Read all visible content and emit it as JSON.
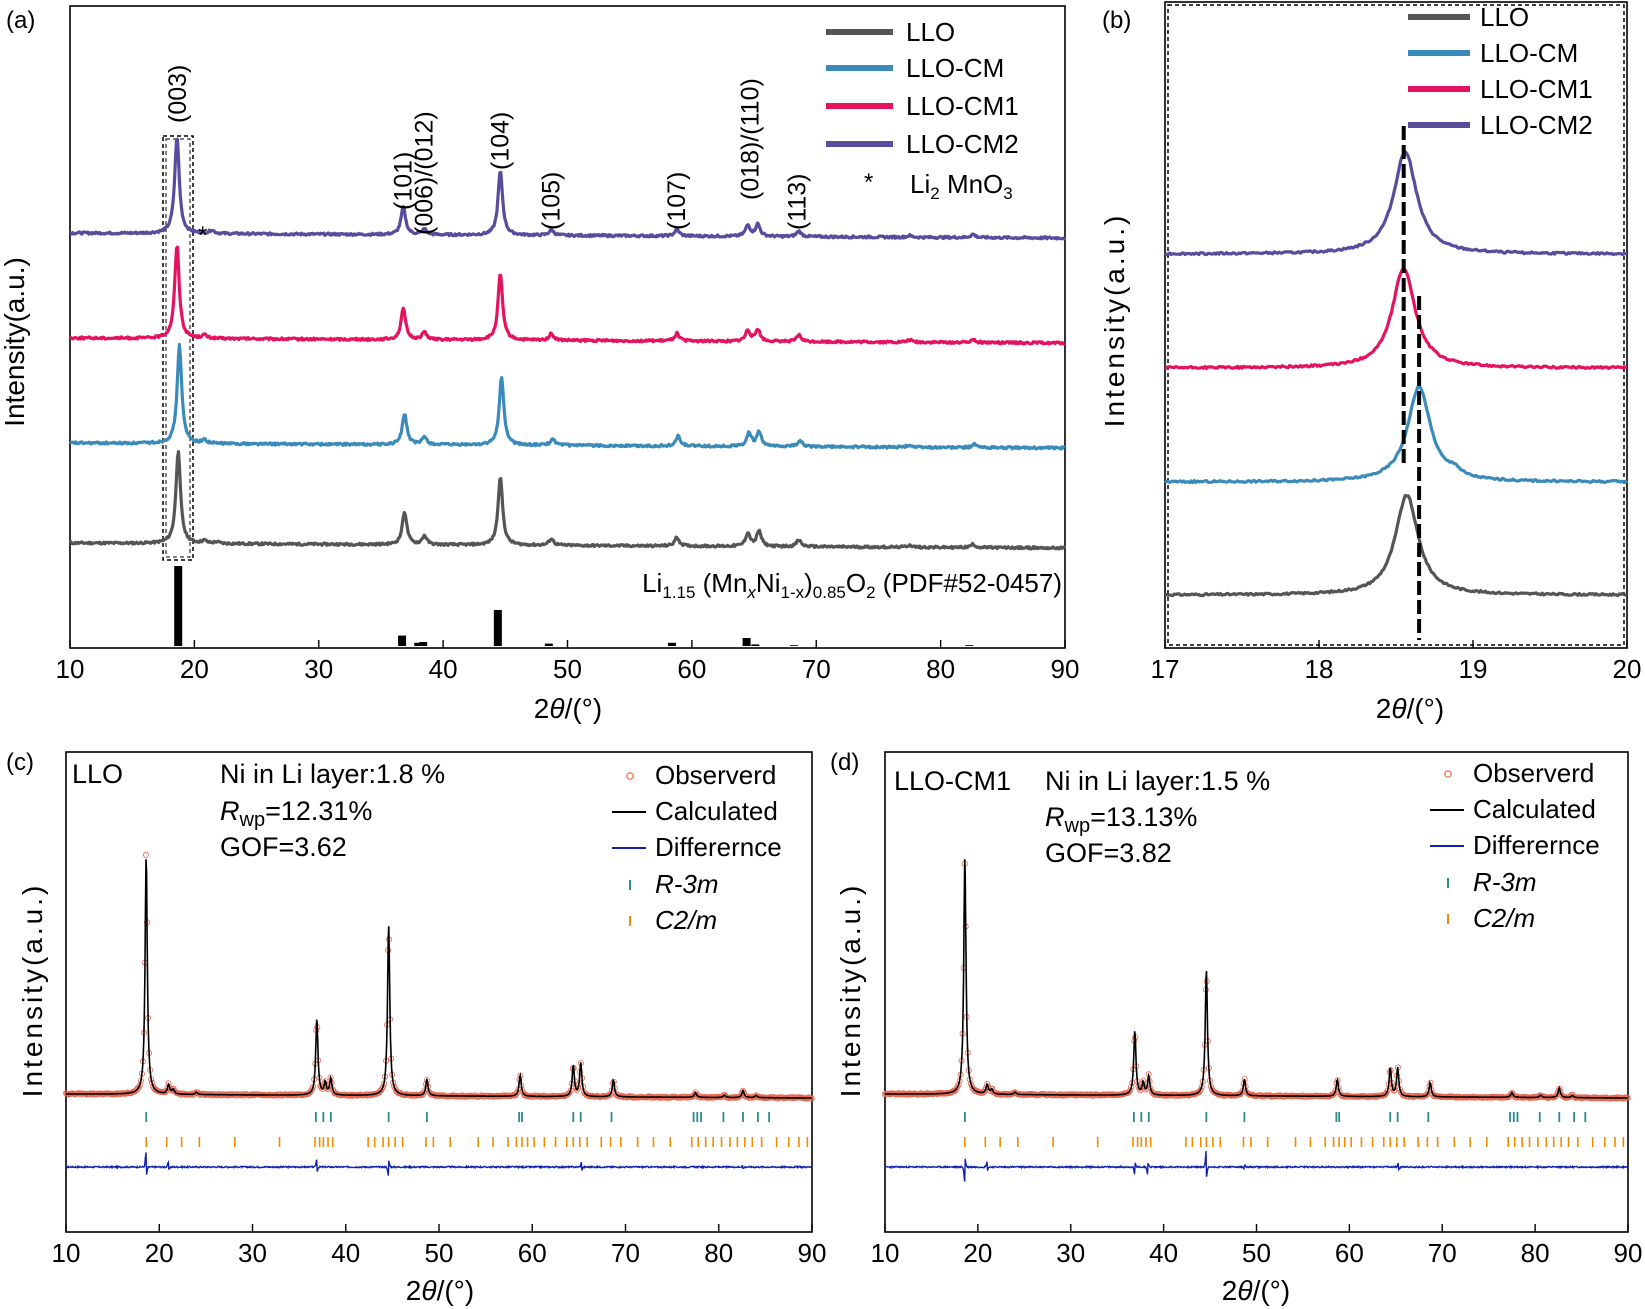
{
  "panel_labels": [
    "(a)",
    "(b)",
    "(c)",
    "(d)"
  ],
  "colors": {
    "LLO": "#555555",
    "LLO-CM": "#3b8bba",
    "LLO-CM1": "#e5135f",
    "LLO-CM2": "#5b4b9c",
    "observed": "#e8664f",
    "calculated": "#000000",
    "difference": "#1020b0",
    "r3m": "#2a8c8c",
    "c2m": "#f08c00"
  },
  "panel_a": {
    "ylabel": "Intensity(a.u.)",
    "xlabel": "2θ/(°)",
    "legend": [
      "LLO",
      "LLO-CM",
      "LLO-CM1",
      "LLO-CM2"
    ],
    "star_label": "*",
    "li2mno3": {
      "main": "Li",
      "sub": "2",
      "mid": " MnO",
      "sub2": "3"
    },
    "pdf": {
      "p1": "Li",
      "s1": "1.15",
      "p2": " (Mn",
      "s2": "x",
      "p3": "Ni",
      "s3": "1-x",
      "p4": ")",
      "s4": "0.85",
      "p5": "O",
      "s5": "2",
      "p6": " (PDF#52-0457)"
    },
    "hkl": [
      {
        "label": "(003)",
        "x": 18.7
      },
      {
        "label": "(101)",
        "x": 36.8
      },
      {
        "label": "(006)/(012)",
        "x": 38.5
      },
      {
        "label": "(104)",
        "x": 44.6
      },
      {
        "label": "(105)",
        "x": 48.7
      },
      {
        "label": "(107)",
        "x": 58.8
      },
      {
        "label": "(018)/(110)",
        "x": 64.7
      },
      {
        "label": "(113)",
        "x": 68.5
      }
    ]
  },
  "panel_b": {
    "ylabel": "Intensity(a.u.)",
    "xlabel": "2θ/(°)",
    "legend": [
      "LLO",
      "LLO-CM",
      "LLO-CM1",
      "LLO-CM2"
    ]
  },
  "panel_c": {
    "sample": "LLO",
    "ni_text": "Ni in Li layer:1.8 %",
    "rwp_prefix": "R",
    "rwp_sub": "wp",
    "rwp_value": "=12.31%",
    "gof": "GOF=3.62",
    "ylabel": "Intensity(a.u.)",
    "xlabel": "2θ/(°)",
    "legend": {
      "observed": "Observerd",
      "calculated": "Calculated",
      "difference": "Differernce",
      "r3m": "R-3m",
      "c2m": "C2/m"
    }
  },
  "panel_d": {
    "sample": "LLO-CM1",
    "ni_text": "Ni in Li layer:1.5 %",
    "rwp_prefix": "R",
    "rwp_sub": "wp",
    "rwp_value": "=13.13%",
    "gof": "GOF=3.82",
    "ylabel": "Intensity(a.u.)",
    "xlabel": "2θ/(°)",
    "legend": {
      "observed": "Observerd",
      "calculated": "Calculated",
      "difference": "Differernce",
      "r3m": "R-3m",
      "c2m": "C2/m"
    }
  },
  "chart_data": [
    {
      "id": "a",
      "type": "line",
      "title": "",
      "xlabel": "2θ/(°)",
      "ylabel": "Intensity(a.u.)",
      "xlim": [
        10,
        90
      ],
      "xticks": [
        10,
        20,
        30,
        40,
        50,
        60,
        70,
        80,
        90
      ],
      "baseline_offsets": [
        0,
        1,
        2,
        3
      ],
      "series": [
        {
          "name": "LLO",
          "offset": 0,
          "peaks": [
            [
              18.7,
              0.85
            ],
            [
              20.8,
              0.025
            ],
            [
              21.8,
              0.015
            ],
            [
              36.9,
              0.3
            ],
            [
              38.5,
              0.08
            ],
            [
              44.6,
              0.62
            ],
            [
              48.7,
              0.06
            ],
            [
              58.8,
              0.08
            ],
            [
              64.5,
              0.12
            ],
            [
              65.4,
              0.14
            ],
            [
              68.6,
              0.06
            ],
            [
              77.5,
              0.02
            ],
            [
              82.6,
              0.03
            ]
          ]
        },
        {
          "name": "LLO-CM",
          "offset": 1,
          "peaks": [
            [
              18.8,
              0.9
            ],
            [
              20.8,
              0.03
            ],
            [
              36.9,
              0.28
            ],
            [
              38.5,
              0.07
            ],
            [
              44.7,
              0.62
            ],
            [
              48.8,
              0.06
            ],
            [
              58.9,
              0.09
            ],
            [
              64.6,
              0.12
            ],
            [
              65.4,
              0.13
            ],
            [
              68.7,
              0.06
            ],
            [
              77.5,
              0.02
            ],
            [
              82.7,
              0.03
            ]
          ]
        },
        {
          "name": "LLO-CM1",
          "offset": 2,
          "peaks": [
            [
              18.6,
              0.85
            ],
            [
              20.8,
              0.03
            ],
            [
              36.8,
              0.28
            ],
            [
              38.5,
              0.07
            ],
            [
              44.6,
              0.6
            ],
            [
              48.7,
              0.06
            ],
            [
              58.8,
              0.07
            ],
            [
              64.5,
              0.1
            ],
            [
              65.3,
              0.11
            ],
            [
              68.6,
              0.06
            ],
            [
              77.5,
              0.02
            ],
            [
              82.6,
              0.03
            ]
          ]
        },
        {
          "name": "LLO-CM2",
          "offset": 3,
          "peaks": [
            [
              18.6,
              0.88
            ],
            [
              21.4,
              0.03
            ],
            [
              36.8,
              0.25
            ],
            [
              38.5,
              0.05
            ],
            [
              44.6,
              0.58
            ],
            [
              48.7,
              0.05
            ],
            [
              58.8,
              0.06
            ],
            [
              64.5,
              0.1
            ],
            [
              65.3,
              0.11
            ],
            [
              68.6,
              0.05
            ],
            [
              77.5,
              0.015
            ],
            [
              82.6,
              0.03
            ]
          ]
        }
      ],
      "reference_bars": [
        [
          18.7,
          1.0
        ],
        [
          36.7,
          0.13
        ],
        [
          38.0,
          0.04
        ],
        [
          38.4,
          0.05
        ],
        [
          44.4,
          0.45
        ],
        [
          48.5,
          0.03
        ],
        [
          58.4,
          0.04
        ],
        [
          64.4,
          0.1
        ],
        [
          65.1,
          0.02
        ],
        [
          68.2,
          0.01
        ],
        [
          82.3,
          0.01
        ]
      ]
    },
    {
      "id": "b",
      "type": "line",
      "xlabel": "2θ/(°)",
      "ylabel": "Intensity(a.u.)",
      "xlim": [
        17,
        20
      ],
      "xticks": [
        17,
        18,
        19,
        20
      ],
      "dashed_reference_x": [
        18.55,
        18.65
      ],
      "series": [
        {
          "name": "LLO",
          "offset": 0,
          "peak_x": 18.57,
          "peak_height": 0.95
        },
        {
          "name": "LLO-CM",
          "offset": 1,
          "peak_x": 18.65,
          "peak_height": 0.95
        },
        {
          "name": "LLO-CM1",
          "offset": 2,
          "peak_x": 18.55,
          "peak_height": 0.95
        },
        {
          "name": "LLO-CM2",
          "offset": 3,
          "peak_x": 18.56,
          "peak_height": 0.95
        }
      ]
    },
    {
      "id": "c",
      "type": "line",
      "title": "LLO",
      "xlabel": "2θ/(°)",
      "ylabel": "Intensity(a.u.)",
      "xlim": [
        10,
        90
      ],
      "xticks": [
        10,
        20,
        30,
        40,
        50,
        60,
        70,
        80,
        90
      ],
      "peaks": [
        [
          18.6,
          1.0
        ],
        [
          21.0,
          0.04
        ],
        [
          21.5,
          0.02
        ],
        [
          24.0,
          0.01
        ],
        [
          36.9,
          0.32
        ],
        [
          37.8,
          0.05
        ],
        [
          38.4,
          0.07
        ],
        [
          44.6,
          0.72
        ],
        [
          48.7,
          0.07
        ],
        [
          58.7,
          0.09
        ],
        [
          64.4,
          0.13
        ],
        [
          65.2,
          0.14
        ],
        [
          68.7,
          0.07
        ],
        [
          77.5,
          0.02
        ],
        [
          80.6,
          0.01
        ],
        [
          82.6,
          0.03
        ],
        [
          84.0,
          0.01
        ]
      ],
      "r3m_ticks": [
        18.6,
        36.8,
        37.6,
        38.4,
        44.6,
        48.7,
        58.6,
        58.9,
        64.4,
        65.2,
        68.5,
        77.3,
        77.7,
        78.1,
        80.5,
        82.6,
        84.2,
        85.4
      ],
      "c2m_ticks": [
        18.6,
        20.8,
        22.4,
        24.3,
        28.1,
        32.9,
        36.7,
        37.2,
        37.6,
        38.1,
        38.6,
        42.4,
        43.1,
        44.0,
        44.6,
        45.3,
        46.1,
        48.6,
        49.4,
        51.2,
        54.2,
        55.8,
        57.4,
        58.3,
        58.9,
        59.5,
        60.2,
        61.3,
        62.5,
        63.7,
        64.4,
        65.1,
        65.9,
        67.4,
        68.4,
        69.5,
        71.3,
        73.0,
        74.8,
        77.1,
        77.8,
        78.6,
        79.4,
        80.3,
        81.2,
        82.0,
        82.8,
        83.6,
        84.6,
        86.2,
        87.5,
        88.6,
        89.5
      ],
      "difference_peaks": [
        [
          18.6,
          0.06
        ],
        [
          21.0,
          0.02
        ],
        [
          36.9,
          0.03
        ],
        [
          44.6,
          -0.04
        ],
        [
          65.3,
          0.02
        ],
        [
          82.6,
          0.01
        ]
      ]
    },
    {
      "id": "d",
      "type": "line",
      "title": "LLO-CM1",
      "xlabel": "2θ/(°)",
      "ylabel": "Intensity(a.u.)",
      "xlim": [
        10,
        90
      ],
      "xticks": [
        10,
        20,
        30,
        40,
        50,
        60,
        70,
        80,
        90
      ],
      "peaks": [
        [
          18.6,
          1.0
        ],
        [
          21.0,
          0.04
        ],
        [
          21.5,
          0.02
        ],
        [
          24.0,
          0.01
        ],
        [
          36.9,
          0.27
        ],
        [
          37.8,
          0.05
        ],
        [
          38.4,
          0.08
        ],
        [
          44.6,
          0.53
        ],
        [
          48.7,
          0.07
        ],
        [
          58.7,
          0.07
        ],
        [
          64.4,
          0.12
        ],
        [
          65.2,
          0.12
        ],
        [
          68.7,
          0.06
        ],
        [
          77.5,
          0.02
        ],
        [
          80.6,
          0.01
        ],
        [
          82.6,
          0.04
        ],
        [
          84.0,
          0.01
        ]
      ],
      "r3m_ticks": [
        18.6,
        36.8,
        37.6,
        38.4,
        44.6,
        48.7,
        58.6,
        58.9,
        64.4,
        65.2,
        68.5,
        77.3,
        77.7,
        78.1,
        80.5,
        82.6,
        84.2,
        85.4
      ],
      "c2m_ticks": [
        18.6,
        20.8,
        22.4,
        24.3,
        28.1,
        32.9,
        36.7,
        37.2,
        37.6,
        38.1,
        38.6,
        42.4,
        43.1,
        44.0,
        44.6,
        45.3,
        46.1,
        48.6,
        49.4,
        51.2,
        54.2,
        55.8,
        57.4,
        58.3,
        58.9,
        59.5,
        60.2,
        61.3,
        62.5,
        63.7,
        64.4,
        65.1,
        65.9,
        67.4,
        68.4,
        69.5,
        71.3,
        73.0,
        74.8,
        77.1,
        77.8,
        78.6,
        79.4,
        80.3,
        81.2,
        82.0,
        82.8,
        83.6,
        84.6,
        86.2,
        87.5,
        88.6,
        89.5
      ],
      "difference_peaks": [
        [
          18.6,
          -0.06
        ],
        [
          21.0,
          0.02
        ],
        [
          36.9,
          -0.03
        ],
        [
          38.3,
          -0.03
        ],
        [
          44.6,
          0.07
        ],
        [
          48.7,
          -0.01
        ],
        [
          65.3,
          0.02
        ]
      ]
    }
  ]
}
